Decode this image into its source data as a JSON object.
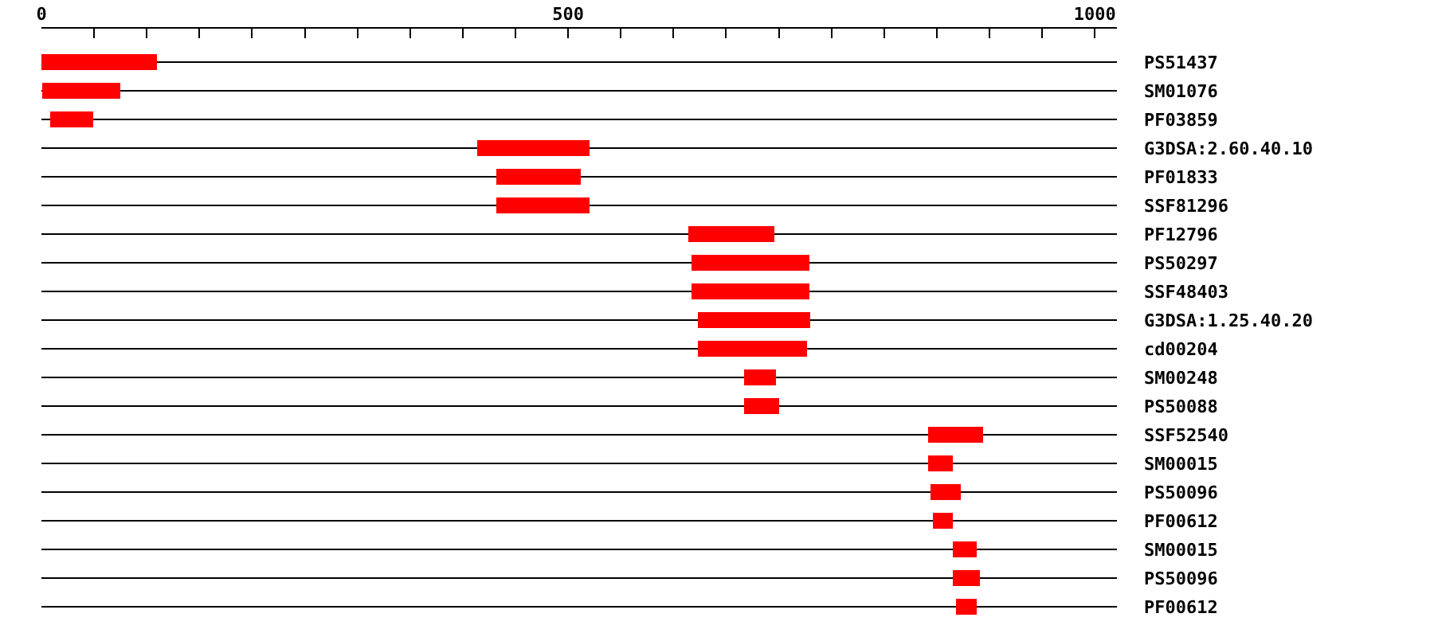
{
  "chart_data": {
    "type": "bar",
    "orientation": "horizontal",
    "categories": [
      "PS51437",
      "SM01076",
      "PF03859",
      "G3DSA:2.60.40.10",
      "PF01833",
      "SSF81296",
      "PF12796",
      "PS50297",
      "SSF48403",
      "G3DSA:1.25.40.20",
      "cd00204",
      "SM00248",
      "PS50088",
      "SSF52540",
      "SM00015",
      "PS50096",
      "PF00612",
      "SM00015",
      "PS50096",
      "PF00612"
    ],
    "base": [
      0,
      1,
      8,
      414,
      432,
      432,
      614,
      617,
      617,
      623,
      623,
      667,
      667,
      842,
      842,
      844,
      846,
      865,
      865,
      868
    ],
    "values": [
      110,
      74,
      41,
      106,
      80,
      88,
      82,
      112,
      112,
      107,
      104,
      30,
      33,
      52,
      23,
      29,
      19,
      23,
      26,
      20
    ],
    "color": "#ff0000",
    "xlim": [
      0,
      1021
    ],
    "xticks": [
      0,
      {
        "value": 50,
        "label": null
      },
      {
        "value": 100,
        "label": null
      },
      {
        "value": 150,
        "label": null
      },
      {
        "value": 200,
        "label": null
      },
      {
        "value": 250,
        "label": null
      },
      {
        "value": 300,
        "label": null
      },
      {
        "value": 350,
        "label": null
      },
      {
        "value": 400,
        "label": null
      },
      {
        "value": 450,
        "label": null
      },
      500,
      {
        "value": 550,
        "label": null
      },
      {
        "value": 600,
        "label": null
      },
      {
        "value": 650,
        "label": null
      },
      {
        "value": 700,
        "label": null
      },
      {
        "value": 750,
        "label": null
      },
      {
        "value": 800,
        "label": null
      },
      {
        "value": 850,
        "label": null
      },
      {
        "value": 900,
        "label": null
      },
      {
        "value": 950,
        "label": null
      },
      1000
    ],
    "grid": "y"
  }
}
